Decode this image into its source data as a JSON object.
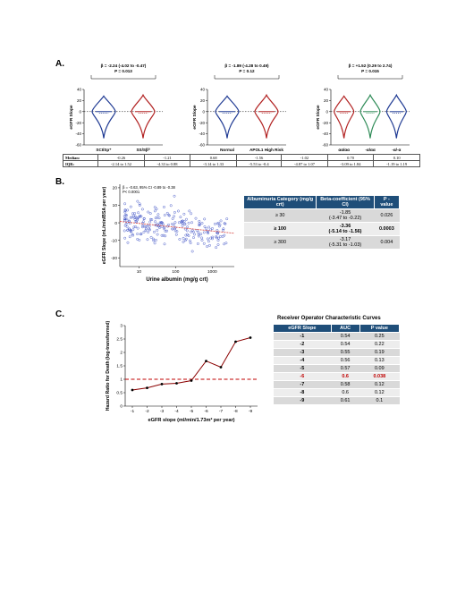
{
  "panelA": {
    "label": "A.",
    "subplots": [
      {
        "beta_text": "β = -2.24 (-4.02 to -0.47)",
        "p_text": "P = 0.013",
        "ylabel": "eGFR Slope",
        "yticks": [
          "40",
          "20",
          "0",
          "-20",
          "-40",
          "-60"
        ],
        "groups": [
          {
            "label": "SCI/Sp⁺",
            "color": "#1f3a93"
          },
          {
            "label": "SS/Sβ⁰",
            "color": "#b22222"
          }
        ]
      },
      {
        "beta_text": "β = -1.89 (-4.28 to 0.49)",
        "p_text": "P = 0.12",
        "ylabel": "eGFR Slope",
        "yticks": [
          "40",
          "20",
          "0",
          "-20",
          "-40",
          "-60"
        ],
        "groups": [
          {
            "label": "Normal",
            "color": "#1f3a93"
          },
          {
            "label": "APOL1 High Risk",
            "color": "#b22222"
          }
        ]
      },
      {
        "beta_text": "β = +1.52 (0.29 to 2.74)",
        "p_text": "P = 0.015",
        "ylabel": "eGFR Slope",
        "yticks": [
          "40",
          "20",
          "0",
          "-20",
          "-40",
          "-60"
        ],
        "groups": [
          {
            "label": "αα/αα",
            "color": "#b22222"
          },
          {
            "label": "-α/αα",
            "color": "#2e8b57"
          },
          {
            "label": "-α/-α",
            "color": "#1f3a93"
          }
        ]
      }
    ],
    "table": {
      "median_label": "Median:",
      "iqr_label": "IQR:",
      "medians": [
        "-0.26",
        "-1.21",
        "0.68",
        "-1.56",
        "-1.02",
        "0.70",
        "0.10"
      ],
      "iqrs": [
        "-2.14 to 1.52",
        "-4.33 to 0.88",
        "-3.14 to 1.33",
        "-5.53 to -0.4",
        "-4.87 to 1.07",
        "-3.09 to 1.84",
        "-1.19 to 1.19"
      ]
    }
  },
  "panelB": {
    "label": "B.",
    "chart_data": {
      "type": "scatter",
      "annotation_line1": "β = -0.63, 95% CI -0.89 to -0.38",
      "annotation_line2": "P< 0.0001",
      "xlabel": "Urine albumin (mg/g crt)",
      "ylabel": "eGFR Slope (mL/min/BSA per year)",
      "xscale": "log",
      "xticks": [
        "10",
        "100",
        "1000"
      ],
      "yticks": [
        "20",
        "10",
        "0",
        "-10",
        "-20"
      ],
      "xlim": [
        3,
        4000
      ],
      "ylim": [
        -25,
        22
      ],
      "trend": {
        "x": [
          3,
          4000
        ],
        "y": [
          0.8,
          -6.0
        ],
        "color": "#d9534f"
      },
      "point_color": "#3b4fc4"
    },
    "table": {
      "headers": [
        "Albuminuria Category (mg/g crt)",
        "Beta-coefficient (95% CI)",
        "P - value"
      ],
      "rows": [
        {
          "category": "≥ 30",
          "beta": "-1.85",
          "ci": "(-3.47 to -0.22)",
          "p": "0.026",
          "bold": false
        },
        {
          "category": "≥ 100",
          "beta": "-3.36",
          "ci": "(-5.14 to -1.56)",
          "p": "0.0003",
          "bold": true
        },
        {
          "category": "≥ 300",
          "beta": "-3.17",
          "ci": "(-5.31 to -1.03)",
          "p": "0.004",
          "bold": false
        }
      ]
    }
  },
  "panelC": {
    "label": "C.",
    "chart_data": {
      "type": "line",
      "xlabel": "eGFR slope (ml/min/1.73m² per year)",
      "ylabel": "Hazard Ratio for Death (log-transformed)",
      "x": [
        "-1",
        "-2",
        "-3",
        "-4",
        "-5",
        "-6",
        "-7",
        "-8",
        "-9"
      ],
      "y": [
        0.6,
        0.68,
        0.82,
        0.85,
        0.95,
        1.68,
        1.45,
        2.4,
        2.55
      ],
      "ylim": [
        0,
        3
      ],
      "yticks": [
        "0",
        "0.5",
        "1",
        "1.5",
        "2",
        "2.5",
        "3"
      ],
      "reference_line": 1,
      "line_color": "#8b0000",
      "reference_color": "#c00000"
    },
    "roc": {
      "title": "Receiver Operator Characteristic Curves",
      "headers": [
        "eGFR Slope",
        "AUC",
        "P value"
      ],
      "rows": [
        {
          "slope": "-1",
          "auc": "0.54",
          "p": "0.25",
          "highlight": false
        },
        {
          "slope": "-2",
          "auc": "0.54",
          "p": "0.22",
          "highlight": false
        },
        {
          "slope": "-3",
          "auc": "0.55",
          "p": "0.19",
          "highlight": false
        },
        {
          "slope": "-4",
          "auc": "0.56",
          "p": "0.13",
          "highlight": false
        },
        {
          "slope": "-5",
          "auc": "0.57",
          "p": "0.09",
          "highlight": false
        },
        {
          "slope": "-6",
          "auc": "0.6",
          "p": "0.038",
          "highlight": true
        },
        {
          "slope": "-7",
          "auc": "0.58",
          "p": "0.12",
          "highlight": false
        },
        {
          "slope": "-8",
          "auc": "0.6",
          "p": "0.12",
          "highlight": false
        },
        {
          "slope": "-9",
          "auc": "0.61",
          "p": "0.1",
          "highlight": false
        }
      ]
    }
  }
}
